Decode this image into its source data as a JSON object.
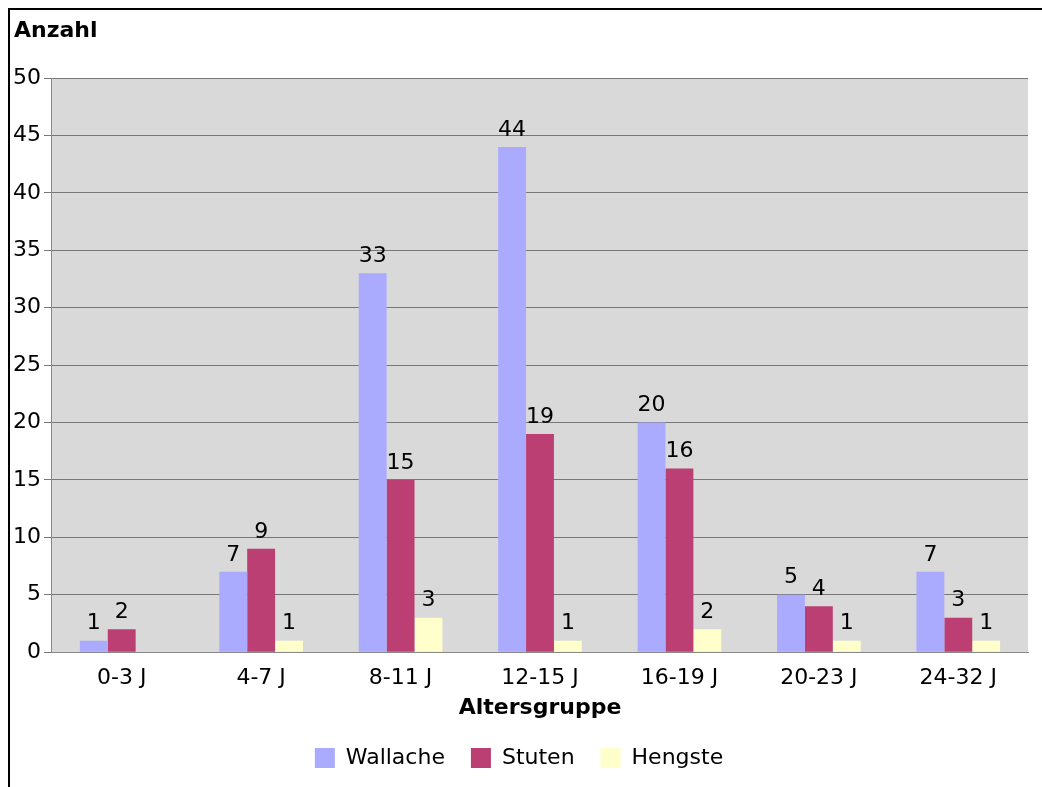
{
  "chart_data": {
    "type": "bar",
    "ylabel": "Anzahl",
    "xlabel": "Altersgruppe",
    "categories": [
      "0-3 J",
      "4-7 J",
      "8-11 J",
      "12-15 J",
      "16-19 J",
      "20-23 J",
      "24-32 J"
    ],
    "series": [
      {
        "name": "Wallache",
        "color": "#aaaaff",
        "values": [
          1,
          7,
          33,
          44,
          20,
          5,
          7
        ]
      },
      {
        "name": "Stuten",
        "color": "#bb3f72",
        "values": [
          2,
          9,
          15,
          19,
          16,
          4,
          3
        ]
      },
      {
        "name": "Hengste",
        "color": "#ffffcc",
        "values": [
          null,
          1,
          3,
          1,
          2,
          1,
          1
        ]
      }
    ],
    "ylim": [
      0,
      50
    ],
    "yticks": [
      0,
      5,
      10,
      15,
      20,
      25,
      30,
      35,
      40,
      45,
      50
    ],
    "grid": "y",
    "legend": "bottom",
    "data_labels": true
  }
}
